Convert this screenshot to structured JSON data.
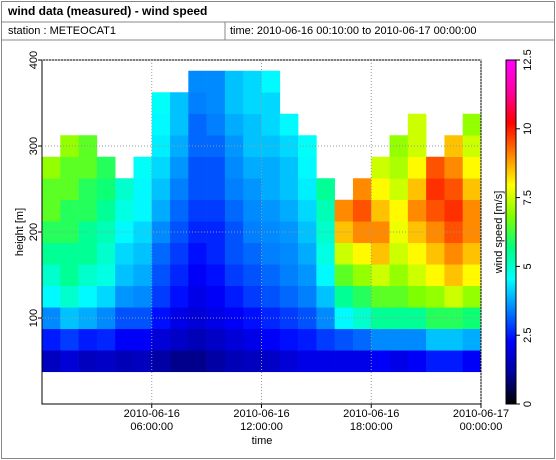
{
  "chart_data": {
    "type": "heatmap",
    "title": "wind data (measured) - wind speed",
    "station": "station : METEOCAT1",
    "time_range": "time: 2010-06-16 00:10:00 to 2010-06-17 00:00:00",
    "x_label": "time",
    "y_label": "height [m]",
    "colorbar_label": "wind speed [m/s]",
    "x": [
      0.5,
      1.5,
      2.5,
      3.5,
      4.5,
      5.5,
      6.5,
      7.5,
      8.5,
      9.5,
      10.5,
      11.5,
      12.5,
      13.5,
      14.5,
      15.5,
      16.5,
      17.5,
      18.5,
      19.5,
      20.5,
      21.5,
      22.5,
      23.5
    ],
    "y": [
      50,
      75,
      100,
      125,
      150,
      175,
      200,
      225,
      250,
      275,
      300,
      325,
      350,
      375
    ],
    "values": [
      [
        1.5,
        2.5,
        3.5,
        4.5,
        5,
        5.5,
        6,
        6.5,
        6.5,
        7,
        null,
        null,
        null,
        null
      ],
      [
        1.8,
        2.8,
        4,
        5,
        5.5,
        5.5,
        6,
        6,
        6.5,
        6.5,
        7,
        null,
        null,
        null
      ],
      [
        1.5,
        2.5,
        3.8,
        4.5,
        5,
        5.5,
        5.5,
        6,
        6,
        6.5,
        6.5,
        null,
        null,
        null
      ],
      [
        1.6,
        2.6,
        3.5,
        4.2,
        4.8,
        5,
        5.2,
        5.5,
        5.8,
        6,
        null,
        null,
        null,
        null
      ],
      [
        1.4,
        2.2,
        3,
        3.6,
        4,
        4.2,
        4.5,
        4.8,
        5,
        null,
        null,
        null,
        null,
        null
      ],
      [
        1.5,
        2.2,
        3,
        3.5,
        3.8,
        4,
        4.2,
        4.5,
        4.5,
        4.6,
        null,
        null,
        null,
        null
      ],
      [
        1.2,
        1.8,
        2.4,
        2.8,
        3,
        3.2,
        3.5,
        3.8,
        4,
        4.2,
        4.4,
        4.5,
        4.6,
        null
      ],
      [
        1,
        1.6,
        2,
        2.4,
        2.6,
        2.8,
        3,
        3.2,
        3.4,
        3.6,
        3.8,
        4,
        4,
        null
      ],
      [
        1,
        1.4,
        1.8,
        2,
        2.2,
        2.4,
        2.6,
        2.8,
        3,
        3,
        3.2,
        3.2,
        3.4,
        3.5
      ],
      [
        1.2,
        1.6,
        2,
        2.2,
        2.4,
        2.6,
        2.6,
        2.8,
        3,
        3,
        3.2,
        3.4,
        3.5,
        3.5
      ],
      [
        1.4,
        1.8,
        2.2,
        2.5,
        2.8,
        3,
        3,
        3.2,
        3.4,
        3.5,
        3.6,
        3.8,
        4,
        4
      ],
      [
        1.5,
        2,
        2.4,
        2.8,
        3,
        3.2,
        3.4,
        3.5,
        3.6,
        3.8,
        4,
        4,
        4.2,
        4.2
      ],
      [
        1.6,
        2.2,
        2.6,
        3,
        3.2,
        3.4,
        3.5,
        3.6,
        3.8,
        3.8,
        4,
        4.2,
        4.2,
        4.5
      ],
      [
        1.8,
        2.4,
        2.8,
        3.2,
        3.4,
        3.5,
        3.6,
        3.8,
        4,
        4,
        4.2,
        4.5,
        null,
        null
      ],
      [
        2,
        2.5,
        3,
        3.4,
        3.6,
        3.8,
        4,
        4.2,
        4.4,
        4.5,
        4.6,
        null,
        null,
        null
      ],
      [
        2,
        2.8,
        3.5,
        4,
        4.5,
        4.8,
        5,
        5.2,
        5.5,
        null,
        null,
        null,
        null,
        null
      ],
      [
        2,
        3,
        4.5,
        5.5,
        6.5,
        7.5,
        8.5,
        9,
        null,
        null,
        null,
        null,
        null,
        null
      ],
      [
        2,
        3.2,
        5,
        6,
        7,
        8,
        9,
        9.5,
        9,
        null,
        null,
        null,
        null,
        null
      ],
      [
        2.2,
        3.5,
        5.5,
        6.5,
        7.5,
        8.5,
        9,
        8.5,
        8,
        7.5,
        null,
        null,
        null,
        null
      ],
      [
        2,
        3.5,
        5.5,
        6.5,
        7,
        7.5,
        7.8,
        8,
        7.5,
        7.2,
        7,
        null,
        null,
        null
      ],
      [
        2.2,
        3.5,
        5.5,
        6.8,
        7.5,
        8,
        8.5,
        9,
        8.5,
        8,
        7.5,
        7.5,
        null,
        null
      ],
      [
        2.5,
        4,
        6,
        7,
        8,
        8.5,
        9,
        9.5,
        9.8,
        9.5,
        null,
        null,
        null,
        null
      ],
      [
        2.5,
        4,
        6,
        7.5,
        8.5,
        9,
        9.5,
        9.8,
        9.5,
        9,
        8.5,
        null,
        null,
        null
      ],
      [
        2.2,
        3.8,
        5.8,
        7,
        8,
        8.5,
        9,
        9,
        8.5,
        8,
        7.5,
        7,
        null,
        null
      ]
    ],
    "xlim": [
      0,
      24
    ],
    "xticks": [
      {
        "value": 6,
        "label": "2010-06-16\n06:00:00"
      },
      {
        "value": 12,
        "label": "2010-06-16\n12:00:00"
      },
      {
        "value": 18,
        "label": "2010-06-16\n18:00:00"
      },
      {
        "value": 24,
        "label": "2010-06-17\n00:00:00"
      }
    ],
    "ylim": [
      0,
      400
    ],
    "yticks": [
      100,
      200,
      300,
      400
    ],
    "clim": [
      0,
      12.5
    ],
    "cticks": [
      0,
      2.5,
      5,
      7.5,
      10,
      12.5
    ],
    "colormap": [
      "#000000",
      "#0000a0",
      "#0000ff",
      "#0080ff",
      "#00ffff",
      "#00ff80",
      "#80ff00",
      "#ffff00",
      "#ff8000",
      "#ff0000",
      "#ff00a0",
      "#ff00ff"
    ],
    "grid": true
  }
}
